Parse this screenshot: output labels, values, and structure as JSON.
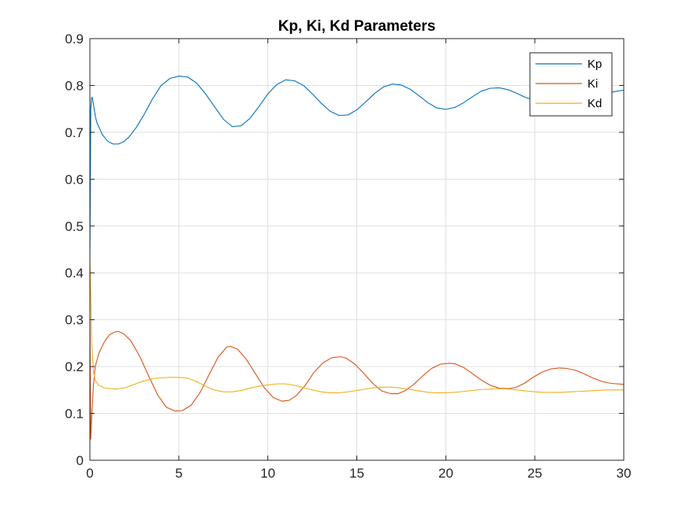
{
  "chart_data": {
    "type": "line",
    "title": "Kp, Ki, Kd Parameters",
    "xlabel": "",
    "ylabel": "",
    "xlim": [
      0,
      30
    ],
    "ylim": [
      0,
      0.9
    ],
    "xticks": [
      0,
      5,
      10,
      15,
      20,
      25,
      30
    ],
    "xtick_labels": [
      "0",
      "5",
      "10",
      "15",
      "20",
      "25",
      "30"
    ],
    "yticks": [
      0,
      0.1,
      0.2,
      0.3,
      0.4,
      0.5,
      0.6,
      0.7,
      0.8,
      0.9
    ],
    "ytick_labels": [
      "0",
      "0.1",
      "0.2",
      "0.3",
      "0.4",
      "0.5",
      "0.6",
      "0.7",
      "0.8",
      "0.9"
    ],
    "grid": true,
    "legend_position": "top-right",
    "series": [
      {
        "name": "Kp",
        "color": "#0072BD",
        "x": [
          0,
          0.05,
          0.1,
          0.15,
          0.2,
          0.3,
          0.4,
          0.5,
          0.7,
          1.0,
          1.3,
          1.6,
          1.9,
          2.2,
          2.6,
          3.0,
          3.5,
          4.0,
          4.5,
          5.0,
          5.5,
          6.0,
          6.5,
          7.0,
          7.5,
          8.0,
          8.5,
          9.0,
          9.5,
          10.0,
          10.5,
          11.0,
          11.5,
          12.0,
          12.5,
          13.0,
          13.5,
          14.0,
          14.5,
          15.0,
          15.5,
          16.0,
          16.5,
          17.0,
          17.5,
          18.0,
          18.5,
          19.0,
          19.5,
          20.0,
          20.5,
          21.0,
          21.5,
          22.0,
          22.5,
          23.0,
          23.5,
          24.0,
          24.5,
          25.0,
          25.5,
          26.0,
          26.5,
          27.0,
          27.5,
          28.0,
          28.5,
          29.0,
          29.5,
          30.0
        ],
        "values": [
          0.43,
          0.75,
          0.775,
          0.772,
          0.76,
          0.735,
          0.72,
          0.712,
          0.695,
          0.681,
          0.675,
          0.675,
          0.68,
          0.69,
          0.71,
          0.735,
          0.77,
          0.8,
          0.815,
          0.82,
          0.818,
          0.805,
          0.782,
          0.755,
          0.728,
          0.712,
          0.714,
          0.73,
          0.755,
          0.782,
          0.802,
          0.812,
          0.81,
          0.8,
          0.782,
          0.762,
          0.745,
          0.736,
          0.737,
          0.748,
          0.765,
          0.783,
          0.797,
          0.803,
          0.801,
          0.792,
          0.778,
          0.763,
          0.752,
          0.749,
          0.753,
          0.763,
          0.776,
          0.788,
          0.794,
          0.795,
          0.791,
          0.783,
          0.774,
          0.769,
          0.77,
          0.777,
          0.785,
          0.788,
          0.787,
          0.784,
          0.782,
          0.783,
          0.787,
          0.79
        ]
      },
      {
        "name": "Ki",
        "color": "#D95319",
        "x": [
          0,
          0.05,
          0.1,
          0.2,
          0.3,
          0.5,
          0.8,
          1.1,
          1.4,
          1.6,
          1.9,
          2.3,
          2.8,
          3.3,
          3.8,
          4.3,
          4.8,
          5.2,
          5.7,
          6.2,
          6.7,
          7.2,
          7.7,
          7.9,
          8.3,
          8.8,
          9.3,
          9.8,
          10.3,
          10.8,
          11.2,
          11.6,
          12.1,
          12.6,
          13.1,
          13.6,
          14.1,
          14.4,
          14.9,
          15.4,
          15.9,
          16.4,
          16.9,
          17.3,
          17.7,
          18.2,
          18.7,
          19.2,
          19.7,
          20.2,
          20.5,
          21.0,
          21.5,
          22.0,
          22.5,
          23.0,
          23.5,
          23.9,
          24.4,
          24.9,
          25.4,
          25.9,
          26.4,
          26.8,
          27.3,
          27.8,
          28.3,
          28.8,
          29.3,
          30.0
        ],
        "values": [
          0.3,
          0.045,
          0.09,
          0.16,
          0.2,
          0.228,
          0.252,
          0.268,
          0.274,
          0.275,
          0.27,
          0.255,
          0.222,
          0.18,
          0.14,
          0.113,
          0.105,
          0.106,
          0.118,
          0.145,
          0.183,
          0.22,
          0.242,
          0.243,
          0.237,
          0.215,
          0.185,
          0.155,
          0.134,
          0.126,
          0.128,
          0.138,
          0.16,
          0.188,
          0.208,
          0.219,
          0.221,
          0.218,
          0.205,
          0.185,
          0.164,
          0.148,
          0.142,
          0.142,
          0.148,
          0.162,
          0.18,
          0.196,
          0.205,
          0.207,
          0.206,
          0.198,
          0.185,
          0.171,
          0.16,
          0.154,
          0.153,
          0.155,
          0.164,
          0.177,
          0.188,
          0.195,
          0.197,
          0.196,
          0.192,
          0.184,
          0.175,
          0.168,
          0.164,
          0.162
        ]
      },
      {
        "name": "Kd",
        "color": "#EDB120",
        "x": [
          0,
          0.05,
          0.1,
          0.2,
          0.3,
          0.5,
          0.8,
          1.1,
          1.5,
          2.0,
          2.5,
          3.0,
          3.5,
          4.0,
          4.5,
          5.0,
          5.5,
          6.0,
          6.5,
          7.0,
          7.5,
          8.0,
          8.5,
          9.0,
          9.5,
          10.0,
          10.5,
          11.0,
          11.5,
          12.0,
          12.5,
          13.0,
          13.5,
          14.0,
          14.5,
          15.0,
          15.5,
          16.0,
          16.5,
          17.0,
          17.5,
          18.0,
          18.5,
          19.0,
          19.5,
          20.0,
          20.5,
          21.0,
          21.5,
          22.0,
          22.5,
          23.0,
          23.5,
          24.0,
          24.5,
          25.0,
          25.5,
          26.0,
          26.5,
          27.0,
          27.5,
          28.0,
          28.5,
          29.0,
          29.5,
          30.0
        ],
        "values": [
          0.43,
          0.35,
          0.25,
          0.19,
          0.17,
          0.16,
          0.155,
          0.153,
          0.152,
          0.155,
          0.162,
          0.169,
          0.174,
          0.176,
          0.177,
          0.177,
          0.175,
          0.168,
          0.158,
          0.15,
          0.146,
          0.146,
          0.149,
          0.154,
          0.158,
          0.161,
          0.163,
          0.163,
          0.16,
          0.155,
          0.15,
          0.146,
          0.144,
          0.144,
          0.146,
          0.149,
          0.152,
          0.155,
          0.156,
          0.156,
          0.154,
          0.151,
          0.148,
          0.145,
          0.144,
          0.144,
          0.145,
          0.147,
          0.149,
          0.151,
          0.152,
          0.153,
          0.152,
          0.15,
          0.148,
          0.146,
          0.145,
          0.145,
          0.145,
          0.146,
          0.147,
          0.148,
          0.149,
          0.15,
          0.15,
          0.15
        ]
      }
    ]
  }
}
